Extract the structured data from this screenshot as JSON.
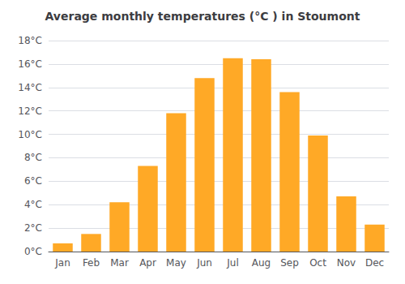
{
  "chart_data": {
    "type": "bar",
    "title": "Average monthly temperatures (°C ) in Stoumont",
    "categories": [
      "Jan",
      "Feb",
      "Mar",
      "Apr",
      "May",
      "Jun",
      "Jul",
      "Aug",
      "Sep",
      "Oct",
      "Nov",
      "Dec"
    ],
    "values": [
      0.7,
      1.5,
      4.2,
      7.3,
      11.8,
      14.8,
      16.5,
      16.4,
      13.6,
      9.9,
      4.7,
      2.3
    ],
    "color": "#FFA926",
    "ylim": [
      0,
      18
    ],
    "yticks": [
      {
        "value": 0,
        "label": "0°C"
      },
      {
        "value": 2,
        "label": "2°C"
      },
      {
        "value": 4,
        "label": "4°C"
      },
      {
        "value": 6,
        "label": "6°C"
      },
      {
        "value": 8,
        "label": "8°C"
      },
      {
        "value": 10,
        "label": "10°C"
      },
      {
        "value": 12,
        "label": "12°C"
      },
      {
        "value": 14,
        "label": "14°C"
      },
      {
        "value": 16,
        "label": "16°C"
      },
      {
        "value": 18,
        "label": "18°C"
      }
    ],
    "grid": true
  }
}
